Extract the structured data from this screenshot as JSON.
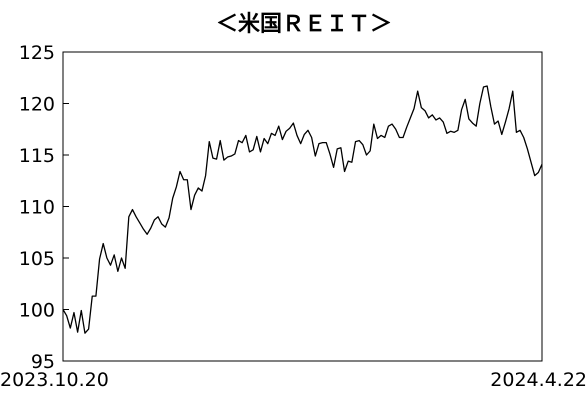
{
  "chart_data": {
    "type": "line",
    "title": "＜米国ＲＥＩＴ＞",
    "xlabel": "",
    "ylabel": "",
    "x_tick_labels": [
      "2023.10.20",
      "2024.4.22"
    ],
    "x_range": [
      "2023.10.20",
      "2024.4.22"
    ],
    "ylim": [
      95,
      125
    ],
    "y_ticks": [
      95,
      100,
      105,
      110,
      115,
      120,
      125
    ],
    "y_tick_labels": [
      "95",
      "100",
      "105",
      "110",
      "115",
      "120",
      "125"
    ],
    "grid": false,
    "legend": "none",
    "line_color": "#000000",
    "series": [
      {
        "values": [
          100.0,
          99.4,
          98.2,
          99.7,
          97.8,
          99.9,
          97.7,
          98.1,
          101.3,
          101.3,
          104.9,
          106.4,
          105.0,
          104.3,
          105.3,
          103.7,
          105.0,
          104.0,
          109.0,
          109.7,
          109.0,
          108.4,
          107.8,
          107.3,
          107.9,
          108.7,
          109.0,
          108.3,
          108.0,
          108.9,
          110.8,
          111.9,
          113.4,
          112.6,
          112.6,
          109.7,
          111.1,
          111.8,
          111.5,
          113.0,
          116.3,
          114.7,
          114.6,
          116.4,
          114.5,
          114.8,
          114.9,
          115.1,
          116.4,
          116.2,
          116.9,
          115.3,
          115.5,
          116.8,
          115.3,
          116.6,
          116.1,
          117.1,
          116.9,
          117.8,
          116.5,
          117.3,
          117.6,
          118.1,
          116.9,
          116.1,
          117.0,
          117.4,
          116.7,
          114.9,
          116.1,
          116.2,
          116.2,
          115.1,
          113.8,
          115.6,
          115.7,
          113.4,
          114.4,
          114.3,
          116.3,
          116.4,
          116.0,
          115.0,
          115.4,
          118.0,
          116.6,
          116.9,
          116.7,
          117.8,
          118.0,
          117.5,
          116.7,
          116.7,
          117.7,
          118.6,
          119.5,
          121.2,
          119.6,
          119.3,
          118.6,
          118.9,
          118.4,
          118.6,
          118.2,
          117.1,
          117.3,
          117.2,
          117.4,
          119.4,
          120.4,
          118.5,
          118.1,
          117.8,
          120.0,
          121.6,
          121.7,
          119.7,
          118.0,
          118.3,
          117.0,
          118.2,
          119.5,
          121.2,
          117.2,
          117.4,
          116.7,
          115.6,
          114.3,
          113.0,
          113.3,
          114.1
        ]
      }
    ]
  }
}
